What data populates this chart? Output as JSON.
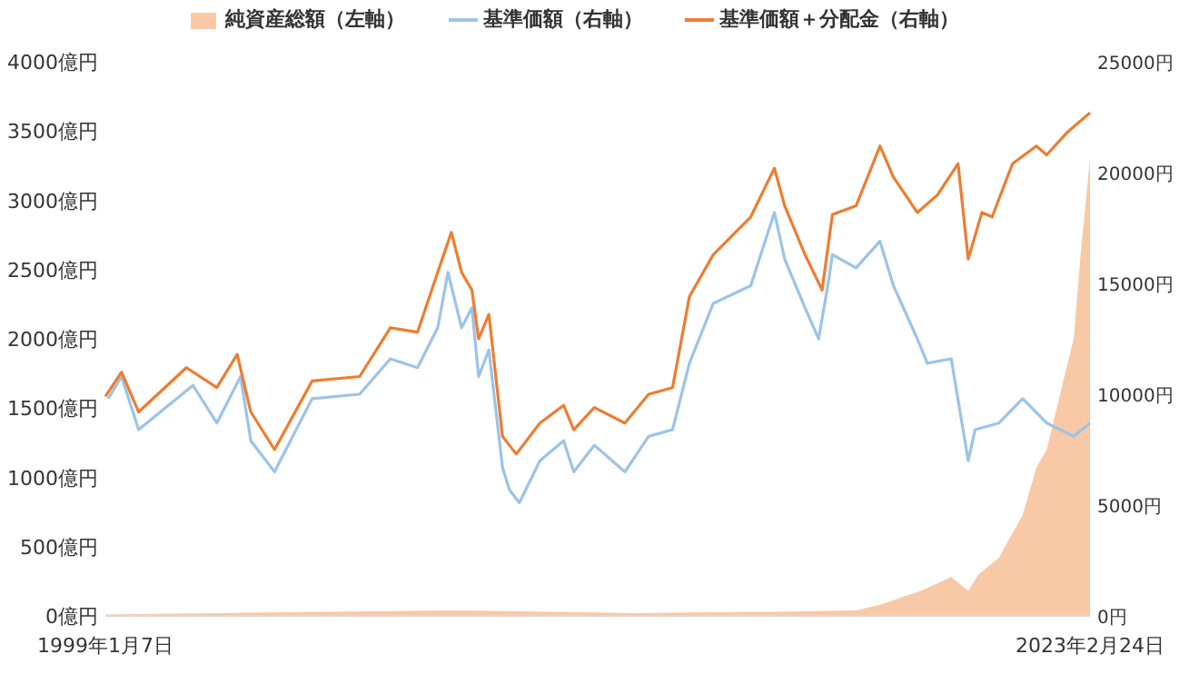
{
  "chart_data": {
    "type": "line",
    "legend": "top",
    "xlim": [
      "1999-01-07",
      "2023-02-24"
    ],
    "xticks": [
      {
        "value": "1999-01-07",
        "label": "1999年1月7日"
      },
      {
        "value": "2023-02-24",
        "label": "2023年2月24日"
      }
    ],
    "ylim": [
      0,
      4000
    ],
    "yticks": [
      {
        "value": 0,
        "label": "0億円"
      },
      {
        "value": 500,
        "label": "500億円"
      },
      {
        "value": 1000,
        "label": "1000億円"
      },
      {
        "value": 1500,
        "label": "1500億円"
      },
      {
        "value": 2000,
        "label": "2000億円"
      },
      {
        "value": 2500,
        "label": "2500億円"
      },
      {
        "value": 3000,
        "label": "3000億円"
      },
      {
        "value": 3500,
        "label": "3500億円"
      },
      {
        "value": 4000,
        "label": "4000億円"
      }
    ],
    "y2lim": [
      0,
      25000
    ],
    "y2ticks": [
      {
        "value": 0,
        "label": "0円"
      },
      {
        "value": 5000,
        "label": "5000円"
      },
      {
        "value": 10000,
        "label": "10000円"
      },
      {
        "value": 15000,
        "label": "15000円"
      },
      {
        "value": 20000,
        "label": "20000円"
      },
      {
        "value": 25000,
        "label": "25000円"
      }
    ],
    "series": [
      {
        "name": "純資産総額（左軸）",
        "type": "area",
        "color": "#f8c9a6",
        "x": [
          "1999-01-07",
          "2007-06",
          "2012-01",
          "2015-06",
          "2017-06",
          "2018-01",
          "2019-01",
          "2019-10",
          "2020-03",
          "2020-06",
          "2020-12",
          "2021-07",
          "2021-11",
          "2022-02",
          "2022-06",
          "2022-10",
          "2022-12",
          "2023-02-24"
        ],
        "values": [
          10,
          40,
          20,
          30,
          40,
          80,
          180,
          280,
          180,
          300,
          420,
          730,
          1070,
          1200,
          1600,
          2000,
          2600,
          3300
        ]
      },
      {
        "name": "基準価額（右軸）",
        "type": "line",
        "axis": "y2",
        "color": "#9dc3e6",
        "x": [
          "1999-02",
          "1999-06",
          "1999-11",
          "2001-03",
          "2001-10",
          "2002-05",
          "2002-08",
          "2003-03",
          "2004-02",
          "2005-04",
          "2006-01",
          "2006-09",
          "2007-03",
          "2007-06",
          "2007-10",
          "2008-01",
          "2008-03",
          "2008-06",
          "2008-10",
          "2008-12",
          "2009-03",
          "2009-09",
          "2010-04",
          "2010-07",
          "2011-01",
          "2011-10",
          "2012-05",
          "2012-12",
          "2013-05",
          "2013-12",
          "2014-11",
          "2015-06",
          "2015-09",
          "2016-03",
          "2016-07",
          "2016-10",
          "2016-11",
          "2017-06",
          "2018-01",
          "2018-05",
          "2018-12",
          "2019-03",
          "2019-10",
          "2020-03",
          "2020-05",
          "2020-12",
          "2021-07",
          "2022-02",
          "2022-10",
          "2023-02-24"
        ],
        "values": [
          9800,
          10800,
          8400,
          10400,
          8700,
          10800,
          7900,
          6500,
          9800,
          10000,
          11600,
          11200,
          13000,
          15500,
          13000,
          13900,
          10800,
          12000,
          6700,
          5700,
          5100,
          7000,
          7900,
          6500,
          7700,
          6500,
          8100,
          8400,
          11400,
          14100,
          14900,
          18200,
          16100,
          13900,
          12500,
          15200,
          16300,
          15700,
          16900,
          14900,
          12500,
          11400,
          11600,
          7000,
          8400,
          8700,
          9800,
          8700,
          8100,
          8700
        ]
      },
      {
        "name": "基準価額＋分配金（右軸）",
        "type": "line",
        "axis": "y2",
        "color": "#ed7d31",
        "x": [
          "1999-01-07",
          "1999-06",
          "1999-11",
          "2001-01",
          "2001-10",
          "2002-04",
          "2002-08",
          "2003-03",
          "2004-02",
          "2005-04",
          "2006-01",
          "2006-09",
          "2007-03",
          "2007-07",
          "2007-10",
          "2008-01",
          "2008-03",
          "2008-06",
          "2008-10",
          "2009-02",
          "2009-09",
          "2010-04",
          "2010-07",
          "2011-01",
          "2011-10",
          "2012-05",
          "2012-12",
          "2013-05",
          "2013-12",
          "2014-11",
          "2015-06",
          "2015-09",
          "2016-03",
          "2016-08",
          "2016-11",
          "2017-06",
          "2018-01",
          "2018-05",
          "2018-12",
          "2019-06",
          "2019-12",
          "2020-03",
          "2020-07",
          "2020-10",
          "2021-04",
          "2021-11",
          "2022-02",
          "2022-08",
          "2023-02-24"
        ],
        "values": [
          9900,
          11000,
          9200,
          11200,
          10300,
          11800,
          9200,
          7500,
          10600,
          10800,
          13000,
          12800,
          15500,
          17300,
          15500,
          14700,
          12500,
          13600,
          8100,
          7300,
          8700,
          9500,
          8400,
          9400,
          8700,
          10000,
          10300,
          14400,
          16300,
          18000,
          20200,
          18500,
          16300,
          14700,
          18100,
          18500,
          21200,
          19800,
          18200,
          19000,
          20400,
          16100,
          18200,
          18000,
          20400,
          21200,
          20800,
          21800,
          22700
        ]
      }
    ]
  }
}
